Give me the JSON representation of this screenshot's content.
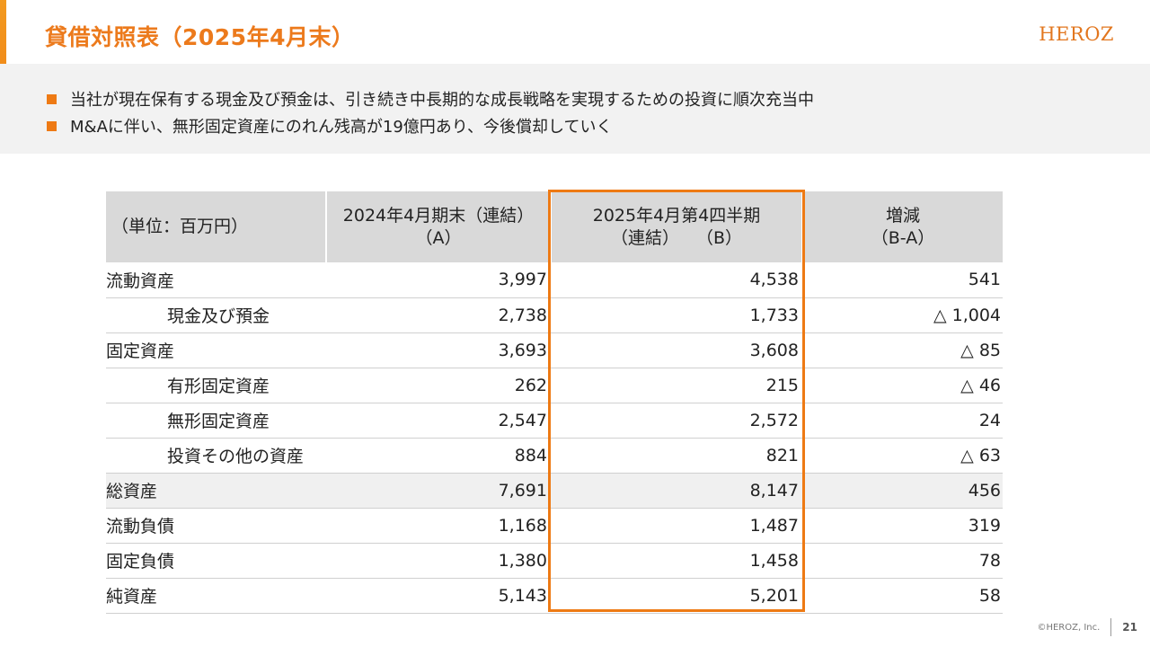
{
  "header": {
    "title": "貸借対照表（2025年4月末）",
    "logo": "HEROZ",
    "accent_color": "#ee7a14"
  },
  "summary": {
    "bullets": [
      "当社が現在保有する現金及び預金は、引き続き中長期的な成長戦略を実現するための投資に順次充当中",
      "M&Aに伴い、無形固定資産にのれん残高が19億円あり、今後償却していく"
    ]
  },
  "table": {
    "headers": {
      "unit": "（単位：百万円）",
      "col_a_line1": "2024年4月期末（連結）",
      "col_a_line2": "（A）",
      "col_b_line1": "2025年4月第4四半期",
      "col_b_line2": "（連結）　　（B）",
      "col_diff_line1": "増減",
      "col_diff_line2": "（B-A）"
    },
    "rows": [
      {
        "label": "流動資産",
        "a": "3,997",
        "b": "4,538",
        "diff": "541"
      },
      {
        "label": "現金及び預金",
        "a": "2,738",
        "b": "1,733",
        "diff": "△ 1,004"
      },
      {
        "label": "固定資産",
        "a": "3,693",
        "b": "3,608",
        "diff": "△ 85"
      },
      {
        "label": "有形固定資産",
        "a": "262",
        "b": "215",
        "diff": "△ 46"
      },
      {
        "label": "無形固定資産",
        "a": "2,547",
        "b": "2,572",
        "diff": "24"
      },
      {
        "label": "投資その他の資産",
        "a": "884",
        "b": "821",
        "diff": "△ 63"
      },
      {
        "label": "総資産",
        "a": "7,691",
        "b": "8,147",
        "diff": "456"
      },
      {
        "label": "流動負債",
        "a": "1,168",
        "b": "1,487",
        "diff": "319"
      },
      {
        "label": "固定負債",
        "a": "1,380",
        "b": "1,458",
        "diff": "78"
      },
      {
        "label": "純資産",
        "a": "5,143",
        "b": "5,201",
        "diff": "58"
      }
    ]
  },
  "footer": {
    "copyright": "©HEROZ, Inc.",
    "page_number": "21"
  }
}
